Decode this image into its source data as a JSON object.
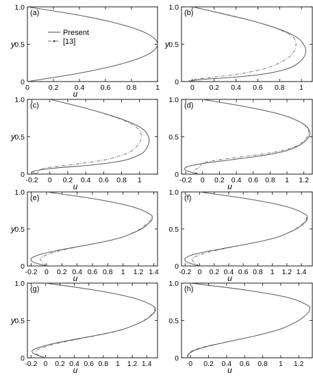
{
  "chart_data": [
    {
      "type": "line",
      "panel_label": "(a)",
      "xlabel": "u",
      "ylabel": "y",
      "xlim": [
        0,
        1
      ],
      "ylim": [
        0,
        1
      ],
      "xticks": [
        0,
        0.2,
        0.4,
        0.6,
        0.8,
        1
      ],
      "xtick_labels": [
        "0",
        "0.2",
        "0.4",
        "0.6",
        "0.8",
        "1"
      ],
      "yticks": [
        0,
        0.5,
        1.0
      ],
      "ytick_labels": [
        "0",
        "0.5",
        "1.0"
      ],
      "legend": {
        "placement": "top-left",
        "entries": [
          "Present",
          "[13]"
        ]
      },
      "series": [
        {
          "name": "Present",
          "style": "solid",
          "y": [
            0,
            0.1,
            0.2,
            0.3,
            0.4,
            0.5,
            0.6,
            0.7,
            0.8,
            0.9,
            1
          ],
          "x": [
            0,
            0.36,
            0.64,
            0.84,
            0.96,
            1.0,
            0.96,
            0.84,
            0.64,
            0.36,
            0
          ]
        },
        {
          "name": "[13]",
          "style": "dash-dot",
          "y": [
            0,
            0.1,
            0.2,
            0.3,
            0.4,
            0.5,
            0.6,
            0.7,
            0.8,
            0.9,
            1
          ],
          "x": [
            0,
            0.36,
            0.64,
            0.84,
            0.96,
            1.0,
            0.96,
            0.84,
            0.64,
            0.36,
            0
          ]
        }
      ]
    },
    {
      "type": "line",
      "panel_label": "(b)",
      "xlabel": "",
      "ylabel": "y",
      "xlim": [
        -0.1,
        1.1
      ],
      "ylim": [
        0,
        1
      ],
      "xticks": [
        0,
        0.2,
        0.4,
        0.6,
        0.8,
        1
      ],
      "xtick_labels": [
        "0",
        "0.2",
        "0.4",
        "0.6",
        "0.8",
        "1"
      ],
      "yticks": [
        0,
        0.5,
        1.0
      ],
      "ytick_labels": [
        "0",
        "0.5",
        "1.0"
      ],
      "series": [
        {
          "name": "Present",
          "style": "solid",
          "y": [
            0,
            0.03,
            0.06,
            0.1,
            0.15,
            0.2,
            0.3,
            0.4,
            0.5,
            0.6,
            0.7,
            0.8,
            0.9,
            1
          ],
          "x": [
            -0.05,
            0.1,
            0.4,
            0.65,
            0.82,
            0.92,
            1.01,
            1.04,
            1.02,
            0.95,
            0.8,
            0.58,
            0.3,
            0
          ]
        },
        {
          "name": "[13]",
          "style": "dash-dot",
          "y": [
            0,
            0.03,
            0.06,
            0.1,
            0.15,
            0.2,
            0.3,
            0.4,
            0.5,
            0.6,
            0.7,
            0.8,
            0.9,
            1
          ],
          "x": [
            -0.05,
            0.03,
            0.2,
            0.42,
            0.6,
            0.72,
            0.86,
            0.93,
            0.95,
            0.92,
            0.79,
            0.58,
            0.31,
            0
          ]
        }
      ]
    },
    {
      "type": "line",
      "panel_label": "(c)",
      "xlabel": "u",
      "ylabel": "y",
      "xlim": [
        -0.25,
        1.2
      ],
      "ylim": [
        0,
        1
      ],
      "xticks": [
        -0.2,
        0,
        0.2,
        0.4,
        0.6,
        0.8,
        1
      ],
      "xtick_labels": [
        "-0.2",
        "0",
        "0.2",
        "0.4",
        "0.6",
        "0.8",
        "1"
      ],
      "yticks": [
        0,
        0.5,
        1.0
      ],
      "ytick_labels": [
        "0",
        "0.5",
        "1.0"
      ],
      "series": [
        {
          "name": "Present",
          "style": "solid",
          "y": [
            0,
            0.04,
            0.08,
            0.12,
            0.16,
            0.2,
            0.26,
            0.3,
            0.4,
            0.5,
            0.6,
            0.7,
            0.8,
            0.9,
            1
          ],
          "x": [
            -0.15,
            -0.18,
            0.05,
            0.45,
            0.72,
            0.88,
            1.0,
            1.05,
            1.1,
            1.1,
            1.04,
            0.88,
            0.64,
            0.34,
            0
          ]
        },
        {
          "name": "[13]",
          "style": "dash-dot",
          "y": [
            0,
            0.04,
            0.08,
            0.12,
            0.16,
            0.2,
            0.26,
            0.3,
            0.4,
            0.5,
            0.6,
            0.7,
            0.8,
            0.9,
            1
          ],
          "x": [
            -0.15,
            -0.12,
            -0.05,
            0.2,
            0.45,
            0.65,
            0.82,
            0.9,
            0.99,
            1.02,
            0.99,
            0.86,
            0.63,
            0.34,
            0
          ]
        }
      ]
    },
    {
      "type": "line",
      "panel_label": "(d)",
      "xlabel": "u",
      "ylabel": "",
      "xlim": [
        -0.25,
        1.3
      ],
      "ylim": [
        0,
        1
      ],
      "xticks": [
        -0.2,
        0,
        0.2,
        0.4,
        0.6,
        0.8,
        1,
        1.2
      ],
      "xtick_labels": [
        "-0.2",
        "0",
        "0.2",
        "0.4",
        "0.6",
        "0.8",
        "1",
        "1.2"
      ],
      "yticks": [
        0,
        0.5,
        1.0
      ],
      "ytick_labels": [
        "0",
        "0.5",
        "1.0"
      ],
      "series": [
        {
          "name": "Present",
          "style": "solid",
          "y": [
            0,
            0.05,
            0.1,
            0.15,
            0.2,
            0.25,
            0.3,
            0.35,
            0.4,
            0.5,
            0.6,
            0.7,
            0.8,
            0.9,
            1
          ],
          "x": [
            -0.05,
            -0.2,
            -0.18,
            0.05,
            0.4,
            0.72,
            0.95,
            1.08,
            1.17,
            1.26,
            1.26,
            1.15,
            0.92,
            0.52,
            0
          ]
        },
        {
          "name": "[13]",
          "style": "dash-dot",
          "y": [
            0,
            0.05,
            0.1,
            0.15,
            0.2,
            0.25,
            0.3,
            0.35,
            0.4,
            0.5,
            0.6,
            0.7,
            0.8,
            0.9,
            1
          ],
          "x": [
            -0.05,
            -0.1,
            -0.02,
            0.0,
            0.25,
            0.6,
            0.88,
            1.05,
            1.15,
            1.24,
            1.25,
            1.15,
            0.92,
            0.52,
            0
          ]
        }
      ]
    },
    {
      "type": "line",
      "panel_label": "(e)",
      "xlabel": "u",
      "ylabel": "y",
      "xlim": [
        -0.25,
        1.45
      ],
      "ylim": [
        0,
        1
      ],
      "xticks": [
        -0.2,
        0,
        0.2,
        0.4,
        0.6,
        0.8,
        1,
        1.2,
        1.4
      ],
      "xtick_labels": [
        "-0.2",
        "0",
        "0.2",
        "0.4",
        "0.6",
        "0.8",
        "1",
        "1.2",
        "1.4"
      ],
      "yticks": [
        0,
        0.5,
        1.0
      ],
      "ytick_labels": [
        "0",
        "0.5",
        "1.0"
      ],
      "series": [
        {
          "name": "Present",
          "style": "solid",
          "y": [
            0,
            0.05,
            0.1,
            0.15,
            0.2,
            0.25,
            0.3,
            0.35,
            0.4,
            0.5,
            0.6,
            0.65,
            0.7,
            0.8,
            0.9,
            1
          ],
          "x": [
            0,
            -0.17,
            -0.2,
            -0.1,
            0.1,
            0.35,
            0.62,
            0.85,
            1.02,
            1.24,
            1.36,
            1.38,
            1.35,
            1.12,
            0.66,
            0
          ]
        },
        {
          "name": "[13]",
          "style": "dash-dot",
          "y": [
            0,
            0.05,
            0.1,
            0.15,
            0.2,
            0.25,
            0.3,
            0.35,
            0.4,
            0.5,
            0.6,
            0.65,
            0.7,
            0.8,
            0.9,
            1
          ],
          "x": [
            0,
            -0.05,
            -0.08,
            0.0,
            0.15,
            0.37,
            0.62,
            0.85,
            1.02,
            1.22,
            1.34,
            1.37,
            1.35,
            1.12,
            0.66,
            0
          ]
        }
      ]
    },
    {
      "type": "line",
      "panel_label": "(f)",
      "xlabel": "u",
      "ylabel": "",
      "xlim": [
        -0.25,
        1.55
      ],
      "ylim": [
        0,
        1
      ],
      "xticks": [
        -0.2,
        0,
        0.2,
        0.4,
        0.6,
        0.8,
        1,
        1.2,
        1.4
      ],
      "xtick_labels": [
        "-0.2",
        "0",
        "0.2",
        "0.4",
        "0.6",
        "0.8",
        "1",
        "1.2",
        "1.4"
      ],
      "yticks": [
        0,
        0.5,
        1.0
      ],
      "ytick_labels": [
        "0",
        "0.5",
        "1.0"
      ],
      "series": [
        {
          "name": "Present",
          "style": "solid",
          "y": [
            0,
            0.05,
            0.1,
            0.15,
            0.2,
            0.25,
            0.3,
            0.35,
            0.4,
            0.5,
            0.6,
            0.65,
            0.7,
            0.8,
            0.9,
            1
          ],
          "x": [
            0,
            -0.17,
            -0.2,
            -0.1,
            0.12,
            0.4,
            0.68,
            0.92,
            1.1,
            1.33,
            1.46,
            1.48,
            1.45,
            1.2,
            0.7,
            0
          ]
        },
        {
          "name": "[13]",
          "style": "dash-dot",
          "y": [
            0,
            0.05,
            0.1,
            0.15,
            0.2,
            0.25,
            0.3,
            0.35,
            0.4,
            0.5,
            0.6,
            0.65,
            0.7,
            0.8,
            0.9,
            1
          ],
          "x": [
            0,
            -0.08,
            -0.1,
            0.0,
            0.18,
            0.42,
            0.68,
            0.92,
            1.1,
            1.32,
            1.45,
            1.47,
            1.45,
            1.2,
            0.7,
            0
          ]
        }
      ]
    },
    {
      "type": "line",
      "panel_label": "(g)",
      "xlabel": "u",
      "ylabel": "y",
      "xlim": [
        -0.25,
        1.55
      ],
      "ylim": [
        0,
        1
      ],
      "xticks": [
        -0.2,
        0,
        0.2,
        0.4,
        0.6,
        0.8,
        1,
        1.2,
        1.4
      ],
      "xtick_labels": [
        "-0.2",
        "0",
        "0.2",
        "0.4",
        "0.6",
        "0.8",
        "1",
        "1.2",
        "1.4"
      ],
      "yticks": [
        0,
        0.5,
        1.0
      ],
      "ytick_labels": [
        "0",
        "0.5",
        "1.0"
      ],
      "series": [
        {
          "name": "Present",
          "style": "solid",
          "y": [
            0,
            0.05,
            0.1,
            0.15,
            0.2,
            0.25,
            0.3,
            0.35,
            0.4,
            0.5,
            0.6,
            0.65,
            0.7,
            0.8,
            0.9,
            1
          ],
          "x": [
            0,
            -0.15,
            -0.18,
            -0.05,
            0.15,
            0.42,
            0.7,
            0.95,
            1.13,
            1.37,
            1.5,
            1.52,
            1.48,
            1.22,
            0.72,
            0
          ]
        },
        {
          "name": "[13]",
          "style": "dash-dot",
          "y": [
            0,
            0.05,
            0.1,
            0.15,
            0.2,
            0.25,
            0.3,
            0.35,
            0.4,
            0.5,
            0.6,
            0.65,
            0.7,
            0.8,
            0.9,
            1
          ],
          "x": [
            0,
            -0.12,
            -0.12,
            0.0,
            0.2,
            0.45,
            0.72,
            0.96,
            1.13,
            1.36,
            1.49,
            1.51,
            1.48,
            1.22,
            0.72,
            0
          ]
        }
      ]
    },
    {
      "type": "line",
      "panel_label": "(h)",
      "xlabel": "u",
      "ylabel": "",
      "xlim": [
        -0.1,
        1.35
      ],
      "ylim": [
        0,
        1
      ],
      "xticks": [
        0,
        0.2,
        0.4,
        0.6,
        0.8,
        1,
        1.2
      ],
      "xtick_labels": [
        "0",
        "0.2",
        "0.4",
        "0.6",
        "0.8",
        "1",
        "1.2"
      ],
      "yticks": [
        0,
        0.5,
        1.0
      ],
      "ytick_labels": [
        "0",
        "0.5",
        "1.0"
      ],
      "series": [
        {
          "name": "Present",
          "style": "solid",
          "y": [
            0,
            0.05,
            0.1,
            0.15,
            0.2,
            0.25,
            0.3,
            0.35,
            0.4,
            0.5,
            0.6,
            0.65,
            0.7,
            0.8,
            0.9,
            1
          ],
          "x": [
            -0.03,
            -0.02,
            0.05,
            0.18,
            0.36,
            0.55,
            0.74,
            0.9,
            1.03,
            1.2,
            1.3,
            1.32,
            1.3,
            1.1,
            0.65,
            0
          ]
        },
        {
          "name": "[13]",
          "style": "dash-dot",
          "y": [
            0,
            0.05,
            0.1,
            0.15,
            0.2,
            0.25,
            0.3,
            0.35,
            0.4,
            0.5,
            0.6,
            0.65,
            0.7,
            0.8,
            0.9,
            1
          ],
          "x": [
            -0.03,
            -0.03,
            0.03,
            0.16,
            0.35,
            0.55,
            0.74,
            0.9,
            1.03,
            1.2,
            1.3,
            1.32,
            1.3,
            1.1,
            0.65,
            0
          ]
        }
      ]
    }
  ]
}
